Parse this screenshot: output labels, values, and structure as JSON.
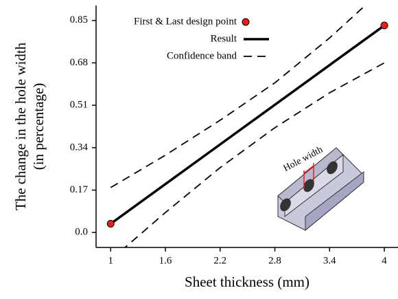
{
  "chart_data": {
    "type": "line",
    "xlabel": "Sheet thickness (mm)",
    "ylabel": [
      "The change in the hole width",
      "(in percentage)"
    ],
    "annotation": "Hole width",
    "x": [
      1,
      1.6,
      2.2,
      2.8,
      3.4,
      4
    ],
    "series": [
      {
        "name": "First & Last design point",
        "style": "marker",
        "color": "#e8201c",
        "x": [
          1,
          4
        ],
        "values": [
          0.035,
          0.83
        ]
      },
      {
        "name": "Result",
        "style": "solid",
        "color": "#000000",
        "values": [
          0.035,
          0.194,
          0.353,
          0.512,
          0.671,
          0.83
        ]
      },
      {
        "name": "Confidence band",
        "style": "dashed",
        "color": "#000000",
        "upper": [
          0.18,
          0.31,
          0.45,
          0.6,
          0.78,
          0.98
        ],
        "lower": [
          -0.11,
          0.08,
          0.26,
          0.42,
          0.56,
          0.68
        ]
      }
    ],
    "xlim": [
      0.84,
      4.15
    ],
    "ylim": [
      -0.06,
      0.91
    ],
    "xticks": [
      1,
      1.6,
      2.2,
      2.8,
      3.4,
      4
    ],
    "yticks": [
      {
        "value": 0,
        "label": "0.0"
      },
      0.17,
      0.34,
      0.51,
      0.68,
      0.85
    ],
    "legend": "upper left"
  }
}
